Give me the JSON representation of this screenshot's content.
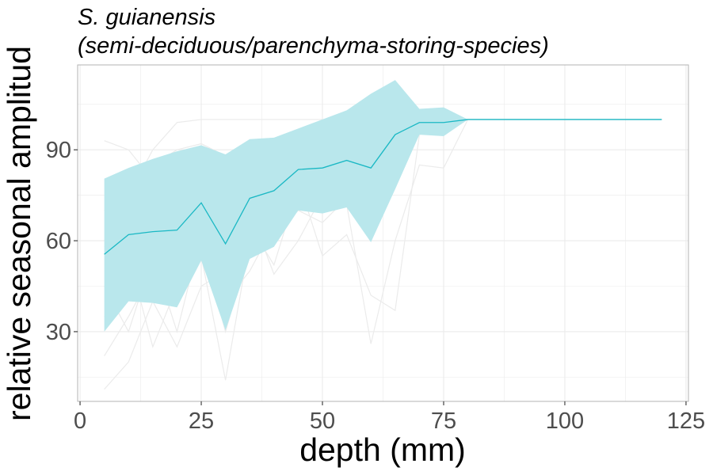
{
  "chart_data": {
    "type": "line",
    "title": "S. guianensis",
    "subtitle": "(semi-deciduous/parenchyma-storing-species)",
    "xlabel": "depth (mm)",
    "ylabel": "relative seasonal amplitud",
    "xlim": [
      -0.5,
      125.5
    ],
    "ylim": [
      7,
      118
    ],
    "x_ticks": [
      0,
      25,
      50,
      75,
      100,
      125
    ],
    "y_ticks": [
      30,
      60,
      90
    ],
    "grid": true,
    "legend": "none",
    "colors": {
      "mean_line": "#1ab8c4",
      "band_fill": "#b9e7ec",
      "background_lines": "#ebebeb",
      "grid": "#ebebeb",
      "panel_border": "#b3b3b3"
    },
    "series": [
      {
        "role": "mean",
        "x": [
          5,
          10,
          15,
          20,
          25,
          30,
          35,
          40,
          45,
          50,
          55,
          60,
          65,
          70,
          75,
          80,
          85,
          90,
          95,
          100,
          105,
          110,
          115,
          120
        ],
        "y": [
          55.5,
          62,
          63,
          63.5,
          72.5,
          59,
          74,
          76.5,
          83.5,
          84,
          86.5,
          84,
          95,
          99,
          99,
          100,
          100,
          100,
          100,
          100,
          100,
          100,
          100,
          100
        ]
      },
      {
        "role": "band_upper",
        "x": [
          5,
          10,
          15,
          20,
          25,
          30,
          35,
          40,
          45,
          50,
          55,
          60,
          65,
          70,
          75,
          80
        ],
        "y": [
          80.5,
          84,
          87,
          89.5,
          91.5,
          88.5,
          93.5,
          94,
          97,
          100,
          103,
          108.5,
          113,
          103.5,
          104,
          100
        ]
      },
      {
        "role": "band_lower",
        "x": [
          5,
          10,
          15,
          20,
          25,
          30,
          35,
          40,
          45,
          50,
          55,
          60,
          65,
          70,
          75,
          80
        ],
        "y": [
          30,
          40,
          39.5,
          38,
          53.5,
          30.5,
          54,
          58,
          70,
          69,
          71,
          59.5,
          77,
          95,
          94.5,
          100
        ]
      },
      {
        "role": "individual",
        "x": [
          5,
          10,
          15,
          20,
          25,
          30,
          35,
          40,
          45,
          50,
          55,
          60,
          65,
          70,
          75,
          80,
          120
        ],
        "y": [
          93,
          90,
          80,
          88,
          70,
          72,
          85,
          78,
          88,
          92,
          95,
          98,
          100,
          100,
          100,
          100,
          100
        ]
      },
      {
        "role": "individual",
        "x": [
          5,
          10,
          15,
          20,
          25,
          30,
          35,
          40,
          45,
          50,
          55,
          60,
          65,
          70,
          75,
          80,
          120
        ],
        "y": [
          22,
          35,
          50,
          60,
          55,
          14,
          60,
          68,
          72,
          80,
          85,
          90,
          95,
          100,
          100,
          100,
          100
        ]
      },
      {
        "role": "individual",
        "x": [
          5,
          10,
          15,
          20,
          25,
          30,
          35,
          40,
          45,
          50,
          55,
          60,
          65,
          70,
          75,
          80,
          120
        ],
        "y": [
          11,
          20,
          40,
          25,
          45,
          50,
          70,
          49,
          60,
          75,
          72,
          26,
          60,
          85,
          84,
          100,
          100
        ]
      },
      {
        "role": "individual",
        "x": [
          5,
          10,
          15,
          20,
          25,
          30,
          35,
          40,
          45,
          50,
          55,
          60,
          65,
          70,
          75,
          80,
          120
        ],
        "y": [
          50,
          55,
          25,
          45,
          82,
          40,
          50,
          65,
          80,
          55,
          62,
          42,
          37,
          95,
          97,
          100,
          100
        ]
      },
      {
        "role": "individual",
        "x": [
          5,
          10,
          15,
          20,
          25,
          30,
          35,
          40,
          45,
          50,
          55,
          60,
          65,
          70,
          75,
          80,
          120
        ],
        "y": [
          60,
          75,
          90,
          99,
          100,
          100,
          100,
          100,
          100,
          100,
          100,
          100,
          100,
          100,
          100,
          100,
          100
        ]
      },
      {
        "role": "individual",
        "x": [
          5,
          10,
          15,
          20,
          25,
          30,
          35,
          40,
          45,
          50,
          55,
          60,
          65,
          70,
          75,
          80,
          120
        ],
        "y": [
          40,
          45,
          60,
          70,
          65,
          75,
          80,
          85,
          90,
          92,
          95,
          97,
          100,
          100,
          100,
          100,
          100
        ]
      },
      {
        "role": "individual",
        "x": [
          5,
          10,
          15,
          20,
          25,
          30,
          35,
          40,
          45,
          50,
          55,
          60,
          65,
          70,
          75,
          80,
          120
        ],
        "y": [
          70,
          80,
          85,
          90,
          92,
          88,
          93,
          91,
          95,
          97,
          99,
          100,
          100,
          100,
          100,
          100,
          100
        ]
      },
      {
        "role": "individual",
        "x": [
          5,
          10,
          15,
          20,
          25,
          30,
          35,
          40,
          45,
          50,
          55,
          60,
          65,
          70,
          75,
          80,
          120
        ],
        "y": [
          45,
          30,
          55,
          30,
          62,
          35,
          65,
          52,
          78,
          70,
          80,
          75,
          92,
          98,
          98,
          100,
          100
        ]
      },
      {
        "role": "individual",
        "x": [
          5,
          10,
          15,
          20,
          25,
          30,
          35,
          40,
          45,
          50,
          55,
          60,
          65,
          70,
          75,
          80,
          120
        ],
        "y": [
          58,
          65,
          72,
          80,
          85,
          68,
          82,
          80,
          85,
          88,
          90,
          93,
          97,
          100,
          100,
          100,
          100
        ]
      },
      {
        "role": "individual",
        "x": [
          5,
          10,
          15,
          20,
          25,
          30,
          35,
          40,
          45,
          50,
          55,
          60,
          65,
          70,
          75,
          80,
          120
        ],
        "y": [
          35,
          42,
          48,
          55,
          60,
          30,
          58,
          62,
          70,
          66,
          74,
          68,
          88,
          96,
          95,
          100,
          100
        ]
      },
      {
        "role": "individual",
        "x": [
          5,
          10,
          15,
          20,
          25,
          30,
          35,
          40,
          45,
          50,
          55,
          60,
          65,
          70,
          75,
          80,
          120
        ],
        "y": [
          75,
          70,
          68,
          75,
          88,
          45,
          78,
          72,
          82,
          90,
          92,
          95,
          99,
          100,
          100,
          100,
          100
        ]
      }
    ]
  }
}
